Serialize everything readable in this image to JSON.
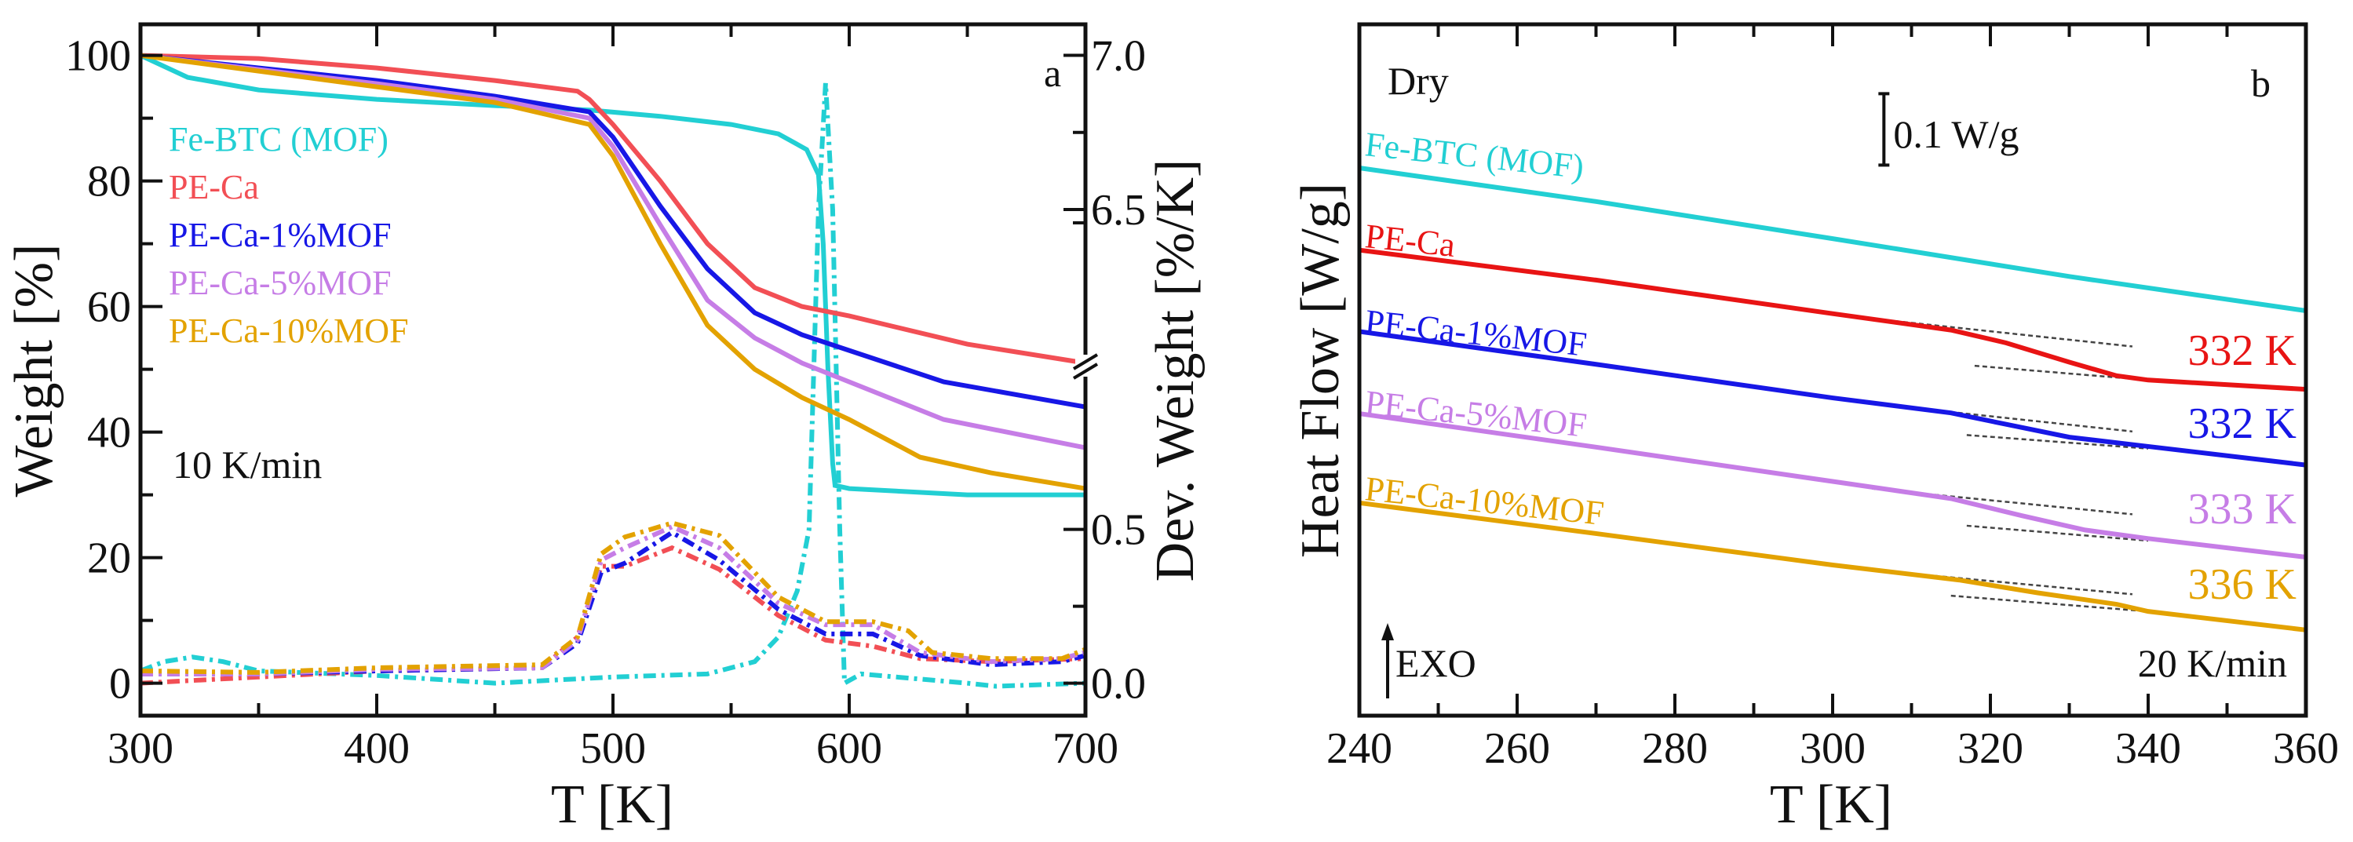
{
  "chart_data": [
    {
      "type": "line",
      "panel_label": "a",
      "xlabel": "T [K]",
      "ylabel": "Weight [%]",
      "y2label": "Dev. Weight [%/K]",
      "xlim": [
        300,
        700
      ],
      "ylim": [
        -5,
        105
      ],
      "y2_broken_axis": {
        "lower": [
          0.0,
          0.5
        ],
        "upper": [
          6.5,
          7.0
        ]
      },
      "xticks": [
        300,
        400,
        500,
        600,
        700
      ],
      "yticks": [
        0,
        20,
        40,
        60,
        80,
        100
      ],
      "y2ticks": [
        "0.0",
        "0.5",
        "6.5",
        "7.0"
      ],
      "annotation": "10 K/min",
      "series": [
        {
          "name": "Fe-BTC (MOF)",
          "color": "#22cfd3",
          "weight": [
            [
              300,
              100
            ],
            [
              320,
              96.5
            ],
            [
              350,
              94.5
            ],
            [
              400,
              93
            ],
            [
              450,
              92
            ],
            [
              490,
              91.3
            ],
            [
              520,
              90.3
            ],
            [
              550,
              89
            ],
            [
              570,
              87.5
            ],
            [
              582,
              85
            ],
            [
              587,
              81
            ],
            [
              589,
              70
            ],
            [
              591,
              50
            ],
            [
              593,
              35
            ],
            [
              594,
              31.5
            ],
            [
              600,
              31
            ],
            [
              650,
              30
            ],
            [
              700,
              30
            ]
          ],
          "dtg": [
            [
              300,
              0.04
            ],
            [
              310,
              0.07
            ],
            [
              322,
              0.085
            ],
            [
              335,
              0.07
            ],
            [
              350,
              0.04
            ],
            [
              400,
              0.025
            ],
            [
              450,
              0.0
            ],
            [
              500,
              0.02
            ],
            [
              540,
              0.03
            ],
            [
              560,
              0.07
            ],
            [
              570,
              0.15
            ],
            [
              578,
              0.3
            ],
            [
              583,
              0.5
            ],
            [
              587,
              6.5
            ],
            [
              590,
              6.91
            ],
            [
              593,
              6.5
            ],
            [
              596,
              0.5
            ],
            [
              598,
              0.0
            ],
            [
              605,
              0.03
            ],
            [
              620,
              0.02
            ],
            [
              650,
              0.0
            ],
            [
              662,
              -0.01
            ],
            [
              700,
              0.0
            ]
          ]
        },
        {
          "name": "PE-Ca",
          "color": "#f24f55",
          "weight": [
            [
              300,
              100
            ],
            [
              350,
              99.5
            ],
            [
              400,
              98
            ],
            [
              450,
              96
            ],
            [
              485,
              94.3
            ],
            [
              490,
              93
            ],
            [
              500,
              89
            ],
            [
              520,
              80
            ],
            [
              540,
              70
            ],
            [
              560,
              63
            ],
            [
              580,
              60
            ],
            [
              600,
              58.5
            ],
            [
              650,
              54
            ],
            [
              700,
              51
            ]
          ],
          "dtg": [
            [
              300,
              0.0
            ],
            [
              350,
              0.02
            ],
            [
              400,
              0.04
            ],
            [
              470,
              0.05
            ],
            [
              485,
              0.15
            ],
            [
              495,
              0.38
            ],
            [
              505,
              0.38
            ],
            [
              525,
              0.44
            ],
            [
              545,
              0.37
            ],
            [
              570,
              0.22
            ],
            [
              590,
              0.14
            ],
            [
              610,
              0.12
            ],
            [
              630,
              0.08
            ],
            [
              660,
              0.07
            ],
            [
              700,
              0.08
            ]
          ]
        },
        {
          "name": "PE-Ca-1%MOF",
          "color": "#1717e6",
          "weight": [
            [
              300,
              100
            ],
            [
              400,
              96
            ],
            [
              450,
              93.5
            ],
            [
              490,
              91
            ],
            [
              500,
              87
            ],
            [
              520,
              76
            ],
            [
              540,
              66
            ],
            [
              560,
              59
            ],
            [
              580,
              55.5
            ],
            [
              600,
              53
            ],
            [
              640,
              48
            ],
            [
              700,
              44
            ]
          ],
          "dtg": [
            [
              300,
              0.03
            ],
            [
              350,
              0.03
            ],
            [
              400,
              0.04
            ],
            [
              470,
              0.05
            ],
            [
              485,
              0.13
            ],
            [
              495,
              0.36
            ],
            [
              505,
              0.39
            ],
            [
              525,
              0.49
            ],
            [
              545,
              0.4
            ],
            [
              570,
              0.24
            ],
            [
              590,
              0.16
            ],
            [
              610,
              0.16
            ],
            [
              630,
              0.09
            ],
            [
              660,
              0.06
            ],
            [
              690,
              0.07
            ],
            [
              700,
              0.09
            ]
          ]
        },
        {
          "name": "PE-Ca-5%MOF",
          "color": "#c67de6",
          "weight": [
            [
              300,
              100
            ],
            [
              400,
              95.5
            ],
            [
              450,
              93
            ],
            [
              490,
              90
            ],
            [
              500,
              85.5
            ],
            [
              520,
              73
            ],
            [
              540,
              61
            ],
            [
              560,
              55
            ],
            [
              580,
              51
            ],
            [
              600,
              48
            ],
            [
              640,
              42
            ],
            [
              700,
              37.5
            ]
          ],
          "dtg": [
            [
              300,
              0.03
            ],
            [
              350,
              0.03
            ],
            [
              400,
              0.045
            ],
            [
              470,
              0.05
            ],
            [
              485,
              0.14
            ],
            [
              495,
              0.4
            ],
            [
              505,
              0.44
            ],
            [
              525,
              0.54
            ],
            [
              545,
              0.44
            ],
            [
              570,
              0.26
            ],
            [
              590,
              0.19
            ],
            [
              610,
              0.19
            ],
            [
              630,
              0.1
            ],
            [
              660,
              0.07
            ],
            [
              690,
              0.08
            ],
            [
              700,
              0.1
            ]
          ]
        },
        {
          "name": "PE-Ca-10%MOF",
          "color": "#e3a200",
          "weight": [
            [
              300,
              100
            ],
            [
              400,
              95
            ],
            [
              450,
              92.5
            ],
            [
              490,
              89
            ],
            [
              500,
              84
            ],
            [
              520,
              70
            ],
            [
              540,
              57
            ],
            [
              560,
              50
            ],
            [
              580,
              45.5
            ],
            [
              600,
              42
            ],
            [
              630,
              36
            ],
            [
              660,
              33.5
            ],
            [
              700,
              31
            ]
          ],
          "dtg": [
            [
              300,
              0.04
            ],
            [
              350,
              0.035
            ],
            [
              400,
              0.05
            ],
            [
              470,
              0.06
            ],
            [
              485,
              0.15
            ],
            [
              495,
              0.42
            ],
            [
              505,
              0.475
            ],
            [
              525,
              0.61
            ],
            [
              545,
              0.48
            ],
            [
              570,
              0.28
            ],
            [
              590,
              0.2
            ],
            [
              610,
              0.2
            ],
            [
              625,
              0.17
            ],
            [
              635,
              0.1
            ],
            [
              660,
              0.08
            ],
            [
              690,
              0.08
            ],
            [
              700,
              0.11
            ]
          ]
        }
      ]
    },
    {
      "type": "line",
      "panel_label": "b",
      "xlabel": "T [K]",
      "ylabel": "Heat Flow [W/g]",
      "xlim": [
        240,
        360
      ],
      "ylim": [
        0,
        0.97
      ],
      "xticks": [
        240,
        260,
        280,
        300,
        320,
        340,
        360
      ],
      "condition": "Dry",
      "scale_bar": {
        "label": "0.1 W/g",
        "x": 306.5,
        "from": 0.771,
        "to": 0.871
      },
      "exo_label": "EXO",
      "rate": "20 K/min",
      "series": [
        {
          "name": "Fe-BTC (MOF)",
          "color": "#22cfd3",
          "tg": "",
          "points": [
            [
              240,
              0.767
            ],
            [
              270,
              0.72
            ],
            [
              300,
              0.668
            ],
            [
              330,
              0.615
            ],
            [
              360,
              0.567
            ]
          ],
          "tangents": []
        },
        {
          "name": "PE-Ca",
          "color": "#e81414",
          "tg": "332 K",
          "points": [
            [
              240,
              0.652
            ],
            [
              270,
              0.61
            ],
            [
              300,
              0.563
            ],
            [
              315,
              0.54
            ],
            [
              322,
              0.522
            ],
            [
              330,
              0.495
            ],
            [
              336,
              0.476
            ],
            [
              340,
              0.47
            ],
            [
              360,
              0.457
            ]
          ],
          "tangents": [
            [
              [
                305,
                0.556
              ],
              [
                338,
                0.517
              ]
            ],
            [
              [
                318,
                0.49
              ],
              [
                340,
                0.47
              ]
            ]
          ]
        },
        {
          "name": "PE-Ca-1%MOF",
          "color": "#1717e6",
          "tg": "332 K",
          "points": [
            [
              240,
              0.538
            ],
            [
              270,
              0.492
            ],
            [
              300,
              0.445
            ],
            [
              315,
              0.424
            ],
            [
              322,
              0.408
            ],
            [
              330,
              0.39
            ],
            [
              340,
              0.377
            ],
            [
              360,
              0.351
            ]
          ],
          "tangents": [
            [
              [
                305,
                0.437
              ],
              [
                338,
                0.398
              ]
            ],
            [
              [
                317,
                0.393
              ],
              [
                340,
                0.374
              ]
            ]
          ]
        },
        {
          "name": "PE-Ca-5%MOF",
          "color": "#c67de6",
          "tg": "333 K",
          "points": [
            [
              240,
              0.423
            ],
            [
              270,
              0.376
            ],
            [
              300,
              0.328
            ],
            [
              315,
              0.304
            ],
            [
              324,
              0.28
            ],
            [
              332,
              0.26
            ],
            [
              340,
              0.248
            ],
            [
              360,
              0.222
            ]
          ],
          "tangents": [
            [
              [
                305,
                0.318
              ],
              [
                338,
                0.282
              ]
            ],
            [
              [
                317,
                0.266
              ],
              [
                340,
                0.245
              ]
            ]
          ]
        },
        {
          "name": "PE-Ca-10%MOF",
          "color": "#e3a200",
          "tg": "336 K",
          "points": [
            [
              240,
              0.298
            ],
            [
              270,
              0.255
            ],
            [
              300,
              0.211
            ],
            [
              316,
              0.19
            ],
            [
              326,
              0.172
            ],
            [
              336,
              0.156
            ],
            [
              340,
              0.146
            ],
            [
              360,
              0.12
            ]
          ],
          "tangents": [
            [
              [
                305,
                0.204
              ],
              [
                338,
                0.17
              ]
            ],
            [
              [
                315,
                0.168
              ],
              [
                340,
                0.146
              ]
            ]
          ]
        }
      ]
    }
  ]
}
